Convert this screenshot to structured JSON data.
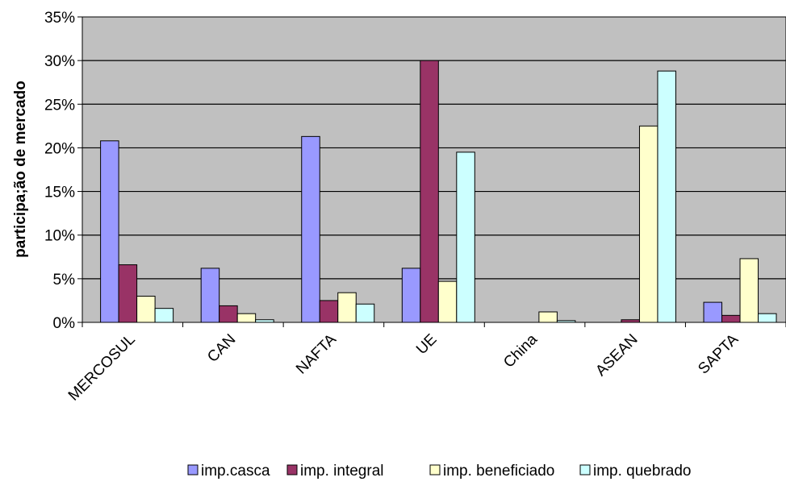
{
  "chart_data": {
    "type": "bar",
    "title": "",
    "xlabel": "",
    "ylabel": "participa;ão de mercado",
    "ylim": [
      0,
      35
    ],
    "yticks": [
      0,
      5,
      10,
      15,
      20,
      25,
      30,
      35
    ],
    "ytick_suffix": "%",
    "grid": true,
    "legend_position": "bottom",
    "categories": [
      "MERCOSUL",
      "CAN",
      "NAFTA",
      "UE",
      "China",
      "ASEAN",
      "SAPTA"
    ],
    "series": [
      {
        "name": "imp.casca",
        "color": "#9999ff",
        "values": [
          20.8,
          6.2,
          21.3,
          6.2,
          0.0,
          0.0,
          2.3
        ]
      },
      {
        "name": "imp. integral",
        "color": "#993366",
        "values": [
          6.6,
          1.9,
          2.5,
          30.0,
          0.0,
          0.3,
          0.8
        ]
      },
      {
        "name": "imp. beneficiado",
        "color": "#ffffcc",
        "values": [
          3.0,
          1.0,
          3.4,
          4.7,
          1.2,
          22.5,
          7.3
        ]
      },
      {
        "name": "imp. quebrado",
        "color": "#ccffff",
        "values": [
          1.6,
          0.3,
          2.1,
          19.5,
          0.2,
          28.8,
          1.0
        ]
      }
    ]
  }
}
